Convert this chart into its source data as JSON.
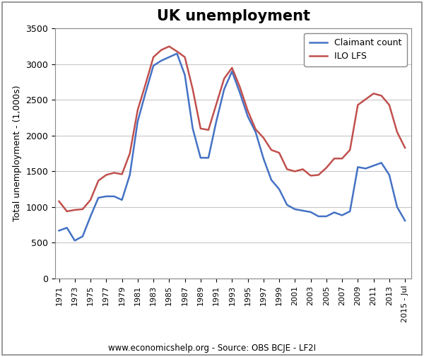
{
  "title": "UK unemployment",
  "ylabel": "Total unemployment - (1,000s)",
  "source_text": "www.economicshelp.org - Source: OBS BCJE - LF2I",
  "ylim": [
    0,
    3500
  ],
  "yticks": [
    0,
    500,
    1000,
    1500,
    2000,
    2500,
    3000,
    3500
  ],
  "x_labels": [
    "1971",
    "1973",
    "1975",
    "1977",
    "1979",
    "1981",
    "1983",
    "1985",
    "1987",
    "1989",
    "1991",
    "1993",
    "1995",
    "1997",
    "1999",
    "2001",
    "2003",
    "2005",
    "2007",
    "2009",
    "2011",
    "2013",
    "2015 - Jul"
  ],
  "claimant_color": "#4472C4",
  "ilo_color": "#C0504D",
  "claimant_label": "Claimant count",
  "ilo_label": "ILO LFS",
  "claimant_data": [
    [
      1971,
      670
    ],
    [
      1972,
      710
    ],
    [
      1973,
      530
    ],
    [
      1974,
      590
    ],
    [
      1975,
      870
    ],
    [
      1976,
      1130
    ],
    [
      1977,
      1150
    ],
    [
      1978,
      1150
    ],
    [
      1979,
      1100
    ],
    [
      1980,
      1450
    ],
    [
      1981,
      2200
    ],
    [
      1982,
      2600
    ],
    [
      1983,
      2980
    ],
    [
      1984,
      3050
    ],
    [
      1985,
      3100
    ],
    [
      1986,
      3150
    ],
    [
      1987,
      2850
    ],
    [
      1988,
      2100
    ],
    [
      1989,
      1690
    ],
    [
      1990,
      1690
    ],
    [
      1991,
      2200
    ],
    [
      1992,
      2650
    ],
    [
      1993,
      2900
    ],
    [
      1994,
      2600
    ],
    [
      1995,
      2270
    ],
    [
      1996,
      2050
    ],
    [
      1997,
      1680
    ],
    [
      1998,
      1380
    ],
    [
      1999,
      1250
    ],
    [
      2000,
      1030
    ],
    [
      2001,
      970
    ],
    [
      2002,
      950
    ],
    [
      2003,
      930
    ],
    [
      2004,
      870
    ],
    [
      2005,
      870
    ],
    [
      2006,
      925
    ],
    [
      2007,
      885
    ],
    [
      2008,
      940
    ],
    [
      2009,
      1560
    ],
    [
      2010,
      1540
    ],
    [
      2011,
      1580
    ],
    [
      2012,
      1620
    ],
    [
      2013,
      1450
    ],
    [
      2014,
      1000
    ],
    [
      2015,
      810
    ]
  ],
  "ilo_data": [
    [
      1971,
      1080
    ],
    [
      1972,
      940
    ],
    [
      1973,
      960
    ],
    [
      1974,
      970
    ],
    [
      1975,
      1100
    ],
    [
      1976,
      1370
    ],
    [
      1977,
      1450
    ],
    [
      1978,
      1480
    ],
    [
      1979,
      1460
    ],
    [
      1980,
      1750
    ],
    [
      1981,
      2360
    ],
    [
      1982,
      2720
    ],
    [
      1983,
      3100
    ],
    [
      1984,
      3200
    ],
    [
      1985,
      3250
    ],
    [
      1986,
      3180
    ],
    [
      1987,
      3100
    ],
    [
      1988,
      2650
    ],
    [
      1989,
      2100
    ],
    [
      1990,
      2080
    ],
    [
      1991,
      2440
    ],
    [
      1992,
      2800
    ],
    [
      1993,
      2950
    ],
    [
      1994,
      2680
    ],
    [
      1995,
      2350
    ],
    [
      1996,
      2090
    ],
    [
      1997,
      1970
    ],
    [
      1998,
      1800
    ],
    [
      1999,
      1760
    ],
    [
      2000,
      1530
    ],
    [
      2001,
      1500
    ],
    [
      2002,
      1530
    ],
    [
      2003,
      1440
    ],
    [
      2004,
      1450
    ],
    [
      2005,
      1550
    ],
    [
      2006,
      1680
    ],
    [
      2007,
      1680
    ],
    [
      2008,
      1800
    ],
    [
      2009,
      2430
    ],
    [
      2010,
      2510
    ],
    [
      2011,
      2590
    ],
    [
      2012,
      2560
    ],
    [
      2013,
      2430
    ],
    [
      2014,
      2050
    ],
    [
      2015,
      1830
    ]
  ],
  "figsize": [
    6.0,
    5.05
  ],
  "dpi": 100,
  "border_color": "#aaaaaa",
  "grid_color": "#c8c8c8"
}
